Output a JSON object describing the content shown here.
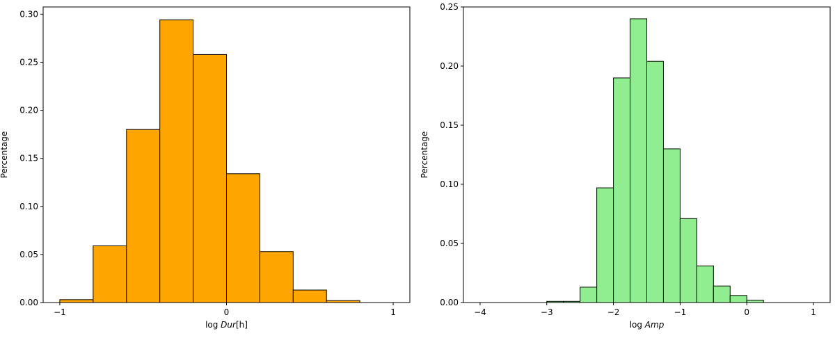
{
  "chart_data": [
    {
      "type": "bar",
      "histogram": true,
      "bin_edges": [
        -1.0,
        -0.8,
        -0.6,
        -0.4,
        -0.2,
        0.0,
        0.2,
        0.4,
        0.6,
        0.8
      ],
      "values": [
        0.003,
        0.059,
        0.18,
        0.294,
        0.258,
        0.134,
        0.053,
        0.013,
        0.002
      ],
      "color": "#ffa500",
      "edge_color": "#000000",
      "xlabel_prefix": "log ",
      "xlabel_italic": "Dur",
      "xlabel_suffix": "[h]",
      "ylabel": "Percentage",
      "xlim": [
        -1.1,
        1.1
      ],
      "ylim": [
        0,
        0.3075
      ],
      "xticks": [
        -1,
        0,
        1
      ],
      "xtick_labels": [
        "−1",
        "0",
        "1"
      ],
      "yticks": [
        0.0,
        0.05,
        0.1,
        0.15,
        0.2,
        0.25,
        0.3
      ],
      "ytick_labels": [
        "0.00",
        "0.05",
        "0.10",
        "0.15",
        "0.20",
        "0.25",
        "0.30"
      ],
      "grid": false
    },
    {
      "type": "bar",
      "histogram": true,
      "bin_edges": [
        -3.0,
        -2.75,
        -2.5,
        -2.25,
        -2.0,
        -1.75,
        -1.5,
        -1.25,
        -1.0,
        -0.75,
        -0.5,
        -0.25,
        0.0,
        0.25
      ],
      "values": [
        0.001,
        0.001,
        0.013,
        0.097,
        0.19,
        0.24,
        0.204,
        0.13,
        0.071,
        0.031,
        0.014,
        0.006,
        0.002
      ],
      "color": "#90ee90",
      "edge_color": "#000000",
      "xlabel_prefix": "log ",
      "xlabel_italic": "Amp",
      "xlabel_suffix": "",
      "ylabel": "Percentage",
      "xlim": [
        -4.25,
        1.25
      ],
      "ylim": [
        0,
        0.25
      ],
      "xticks": [
        -4,
        -3,
        -2,
        -1,
        0,
        1
      ],
      "xtick_labels": [
        "−4",
        "−3",
        "−2",
        "−1",
        "0",
        "1"
      ],
      "yticks": [
        0.0,
        0.05,
        0.1,
        0.15,
        0.2,
        0.25
      ],
      "ytick_labels": [
        "0.00",
        "0.05",
        "0.10",
        "0.15",
        "0.20",
        "0.25"
      ],
      "grid": false
    }
  ]
}
